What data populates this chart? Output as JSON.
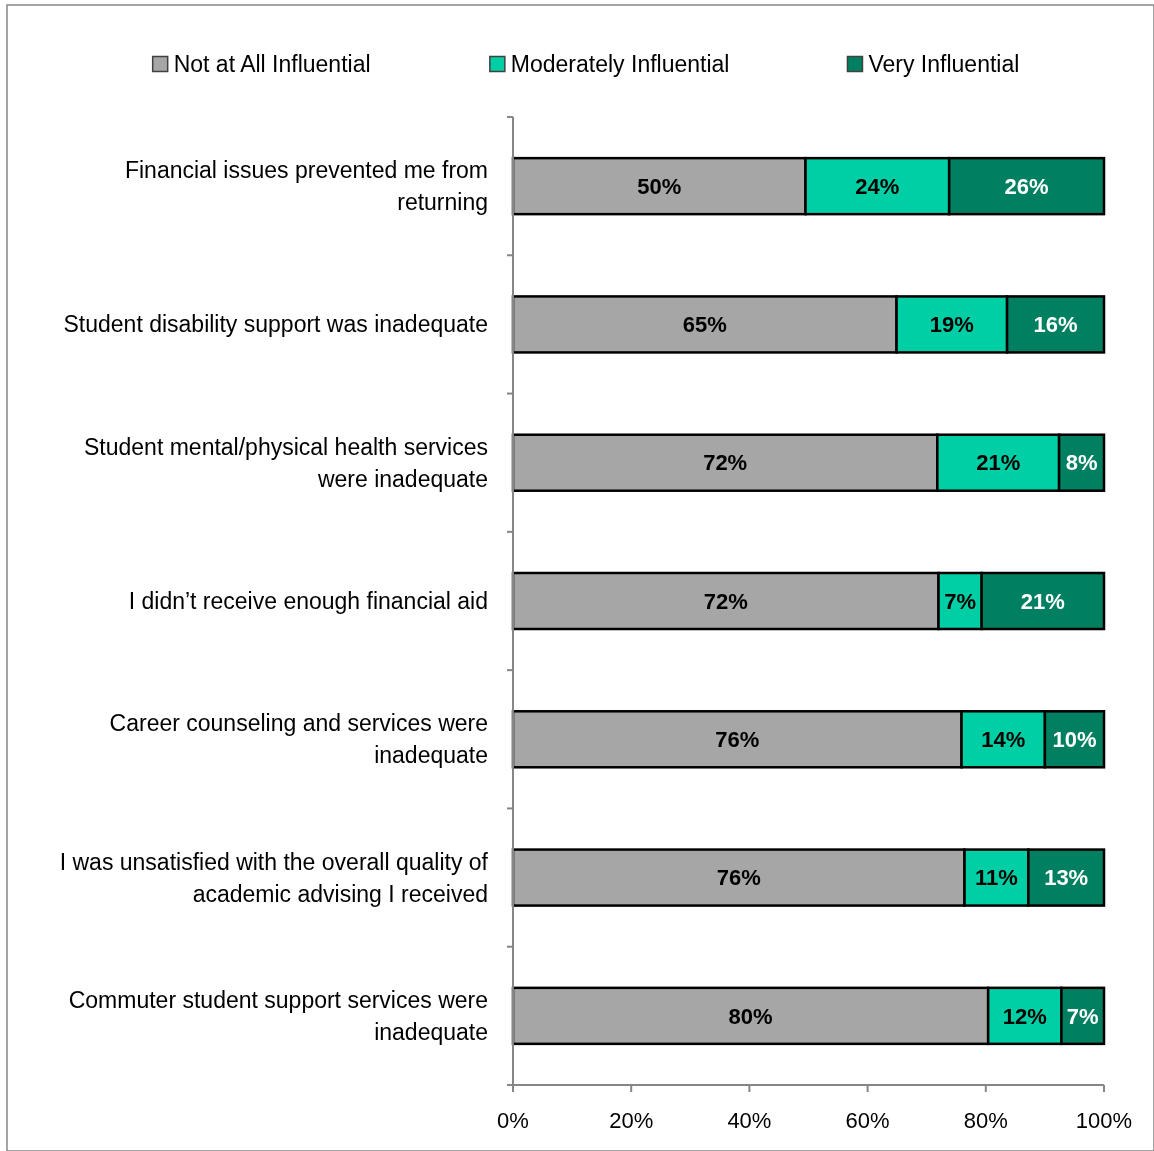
{
  "chart_data": {
    "type": "bar",
    "orientation": "horizontal",
    "stacked": true,
    "categories": [
      "Financial issues prevented me from returning",
      "Student disability support was inadequate",
      "Student mental/physical health services were inadequate",
      "I didn’t receive enough financial aid",
      "Career counseling and services were inadequate",
      "I was unsatisfied with the overall quality of academic advising I received",
      "Commuter student support services were inadequate"
    ],
    "series": [
      {
        "name": "Not at All Influential",
        "color": "#a6a6a6",
        "values": [
          49.5,
          64.9,
          71.8,
          72.0,
          75.9,
          76.4,
          80.4
        ],
        "value_labels": [
          "50%",
          "65%",
          "72%",
          "72%",
          "76%",
          "76%",
          "80%"
        ]
      },
      {
        "name": "Moderately Influential",
        "color": "#00cfa5",
        "values": [
          24.3,
          18.7,
          20.6,
          7.3,
          14.1,
          10.8,
          12.4
        ],
        "value_labels": [
          "24%",
          "19%",
          "21%",
          "7%",
          "14%",
          "11%",
          "12%"
        ]
      },
      {
        "name": "Very Influential",
        "color": "#008060",
        "values": [
          26.2,
          16.4,
          7.6,
          20.7,
          10.0,
          12.8,
          7.2
        ],
        "value_labels": [
          "26%",
          "16%",
          "8%",
          "21%",
          "10%",
          "13%",
          "7%"
        ]
      }
    ],
    "xlim": [
      0,
      100
    ],
    "xticks": [
      {
        "value": 0,
        "label": "0%"
      },
      {
        "value": 20,
        "label": "20%"
      },
      {
        "value": 40,
        "label": "40%"
      },
      {
        "value": 60,
        "label": "60%"
      },
      {
        "value": 80,
        "label": "80%"
      },
      {
        "value": 100,
        "label": "100%"
      }
    ],
    "legend": "top"
  }
}
